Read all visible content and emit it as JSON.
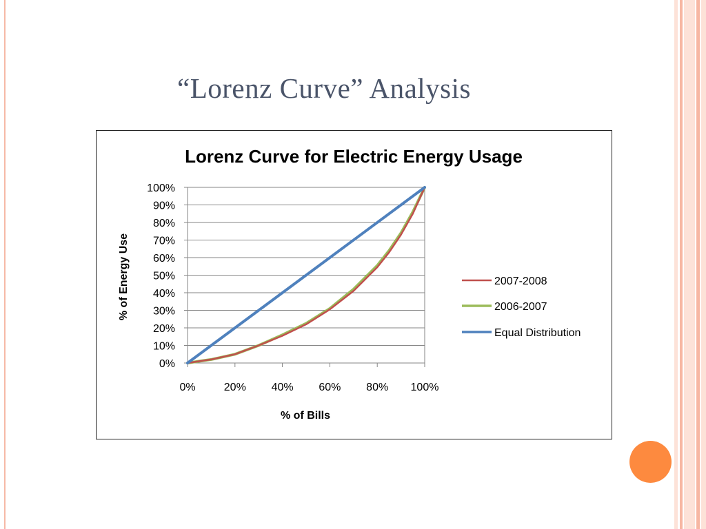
{
  "slide": {
    "title": "“Lorenz Curve” Analysis"
  },
  "colors": {
    "title_text": "#4a5469",
    "accent_circle": "#fd8a3f",
    "stripe_light": "#fde2d8",
    "stripe_mid": "#f7b7a3",
    "series_2007_2008": "#c0504d",
    "series_2006_2007": "#9bbb59",
    "series_equal": "#4f81bd"
  },
  "chart_data": {
    "type": "line",
    "title": "Lorenz Curve for Electric Energy Usage",
    "xlabel": "% of Bills",
    "ylabel": "% of Energy Use",
    "xlim": [
      0,
      1
    ],
    "ylim": [
      0,
      1
    ],
    "x_ticks": [
      "0%",
      "20%",
      "40%",
      "60%",
      "80%",
      "100%"
    ],
    "y_ticks": [
      "0%",
      "10%",
      "20%",
      "30%",
      "40%",
      "50%",
      "60%",
      "70%",
      "80%",
      "90%",
      "100%"
    ],
    "grid": true,
    "legend_position": "right",
    "series": [
      {
        "name": "2007-2008",
        "color": "#c0504d",
        "x": [
          0,
          0.05,
          0.1,
          0.2,
          0.3,
          0.4,
          0.5,
          0.6,
          0.7,
          0.8,
          0.85,
          0.9,
          0.95,
          1.0
        ],
        "y": [
          0,
          0.01,
          0.02,
          0.05,
          0.1,
          0.155,
          0.22,
          0.305,
          0.41,
          0.545,
          0.63,
          0.73,
          0.85,
          1.0
        ]
      },
      {
        "name": "2006-2007",
        "color": "#9bbb59",
        "x": [
          0,
          0.05,
          0.1,
          0.2,
          0.3,
          0.4,
          0.5,
          0.6,
          0.7,
          0.8,
          0.85,
          0.9,
          0.95,
          1.0
        ],
        "y": [
          0,
          0.01,
          0.02,
          0.05,
          0.1,
          0.16,
          0.225,
          0.31,
          0.42,
          0.555,
          0.64,
          0.74,
          0.86,
          1.0
        ]
      },
      {
        "name": "Equal Distribution",
        "color": "#4f81bd",
        "x": [
          0,
          1
        ],
        "y": [
          0,
          1
        ]
      }
    ]
  }
}
